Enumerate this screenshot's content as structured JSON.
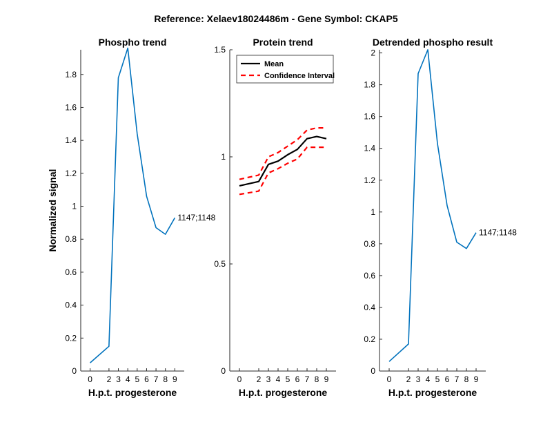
{
  "suptitle": "Reference:  Xelaev18024486m - Gene Symbol:  CKAP5",
  "colors": {
    "phospho": "#0072BD",
    "mean": "#000000",
    "ci": "#FF0000"
  },
  "chart_data": [
    {
      "type": "line",
      "title": "Phospho trend",
      "xlabel": "H.p.t. progesterone",
      "ylabel": "Normalized signal",
      "x": [
        0,
        2,
        3,
        4,
        5,
        6,
        7,
        8,
        9
      ],
      "xticks": [
        "0",
        "2",
        "3",
        "4",
        "5",
        "6",
        "7",
        "8",
        "9"
      ],
      "ylim": [
        0,
        1.95
      ],
      "yticks": [
        "0",
        "0.2",
        "0.4",
        "0.6",
        "0.8",
        "1",
        "1.2",
        "1.4",
        "1.6",
        "1.8"
      ],
      "ytick_values": [
        0,
        0.2,
        0.4,
        0.6,
        0.8,
        1,
        1.2,
        1.4,
        1.6,
        1.8
      ],
      "series": [
        {
          "values": [
            0.05,
            0.15,
            1.78,
            1.96,
            1.44,
            1.06,
            0.87,
            0.83,
            0.93
          ]
        }
      ],
      "annotation": "1147;1148"
    },
    {
      "type": "line",
      "title": "Protein trend",
      "xlabel": "H.p.t. progesterone",
      "x": [
        0,
        2,
        3,
        4,
        5,
        6,
        7,
        8,
        9
      ],
      "xticks": [
        "0",
        "2",
        "3",
        "4",
        "5",
        "6",
        "7",
        "8",
        "9"
      ],
      "ylim": [
        0,
        1.5
      ],
      "yticks": [
        "0",
        "0.5",
        "1",
        "1.5"
      ],
      "ytick_values": [
        0,
        0.5,
        1,
        1.5
      ],
      "legend": {
        "position": "top-left",
        "entries": [
          "Mean",
          "Confidence Interval"
        ]
      },
      "series": [
        {
          "name": "Mean",
          "values": [
            0.865,
            0.885,
            0.965,
            0.98,
            1.01,
            1.035,
            1.085,
            1.095,
            1.085
          ]
        },
        {
          "name": "Confidence Interval",
          "values": [
            0.895,
            0.915,
            1.0,
            1.02,
            1.05,
            1.08,
            1.125,
            1.135,
            1.135
          ]
        },
        {
          "name": "Confidence Interval",
          "values": [
            0.825,
            0.84,
            0.925,
            0.945,
            0.97,
            0.99,
            1.045,
            1.045,
            1.045
          ]
        }
      ]
    },
    {
      "type": "line",
      "title": "Detrended phospho result",
      "xlabel": "H.p.t. progesterone",
      "x": [
        0,
        2,
        3,
        4,
        5,
        6,
        7,
        8,
        9
      ],
      "xticks": [
        "0",
        "2",
        "3",
        "4",
        "5",
        "6",
        "7",
        "8",
        "9"
      ],
      "ylim": [
        0,
        2.02
      ],
      "yticks": [
        "0",
        "0.2",
        "0.4",
        "0.6",
        "0.8",
        "1",
        "1.2",
        "1.4",
        "1.6",
        "1.8",
        "2"
      ],
      "ytick_values": [
        0,
        0.2,
        0.4,
        0.6,
        0.8,
        1,
        1.2,
        1.4,
        1.6,
        1.8,
        2
      ],
      "series": [
        {
          "values": [
            0.06,
            0.17,
            1.87,
            2.02,
            1.43,
            1.04,
            0.81,
            0.77,
            0.87
          ]
        }
      ],
      "annotation": "1147;1148"
    }
  ]
}
